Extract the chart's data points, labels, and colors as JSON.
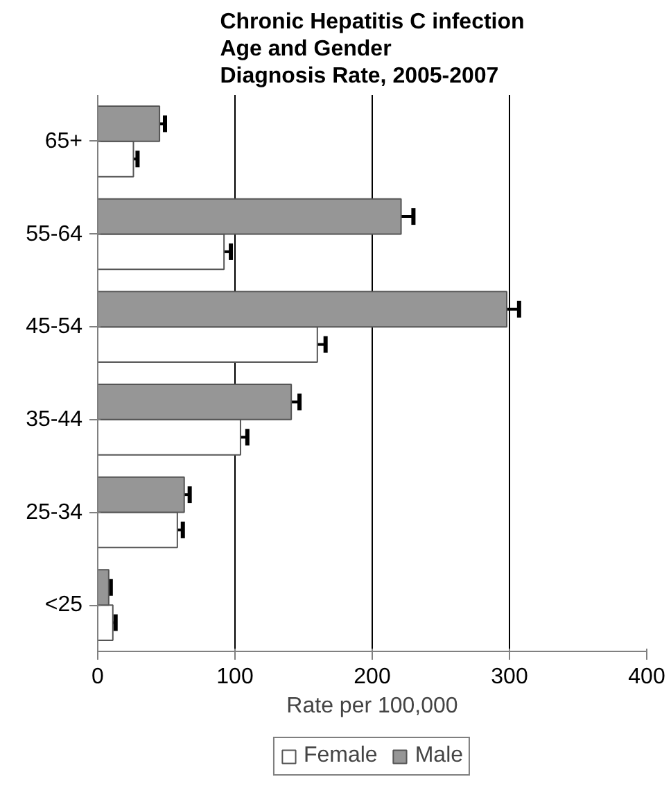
{
  "chart_data": {
    "type": "bar",
    "orientation": "horizontal",
    "title": "Chronic Hepatitis C infection\nAge and Gender\nDiagnosis Rate, 2005-2007",
    "xlabel": "Rate per 100,000",
    "categories": [
      "65+",
      "55-64",
      "45-54",
      "35-44",
      "25-34",
      "<25"
    ],
    "series": [
      {
        "name": "Female",
        "color": "#ffffff",
        "values": [
          26,
          92,
          160,
          104,
          58,
          11
        ],
        "errors": [
          3,
          5,
          6,
          5,
          4,
          2
        ]
      },
      {
        "name": "Male",
        "color": "#969696",
        "values": [
          45,
          221,
          298,
          141,
          63,
          8
        ],
        "errors": [
          4,
          9,
          9,
          6,
          4,
          1.5
        ]
      }
    ],
    "xlim": [
      0,
      400
    ],
    "xticks": [
      0,
      100,
      200,
      300,
      400
    ],
    "grid": "x",
    "legend": "bottom"
  }
}
